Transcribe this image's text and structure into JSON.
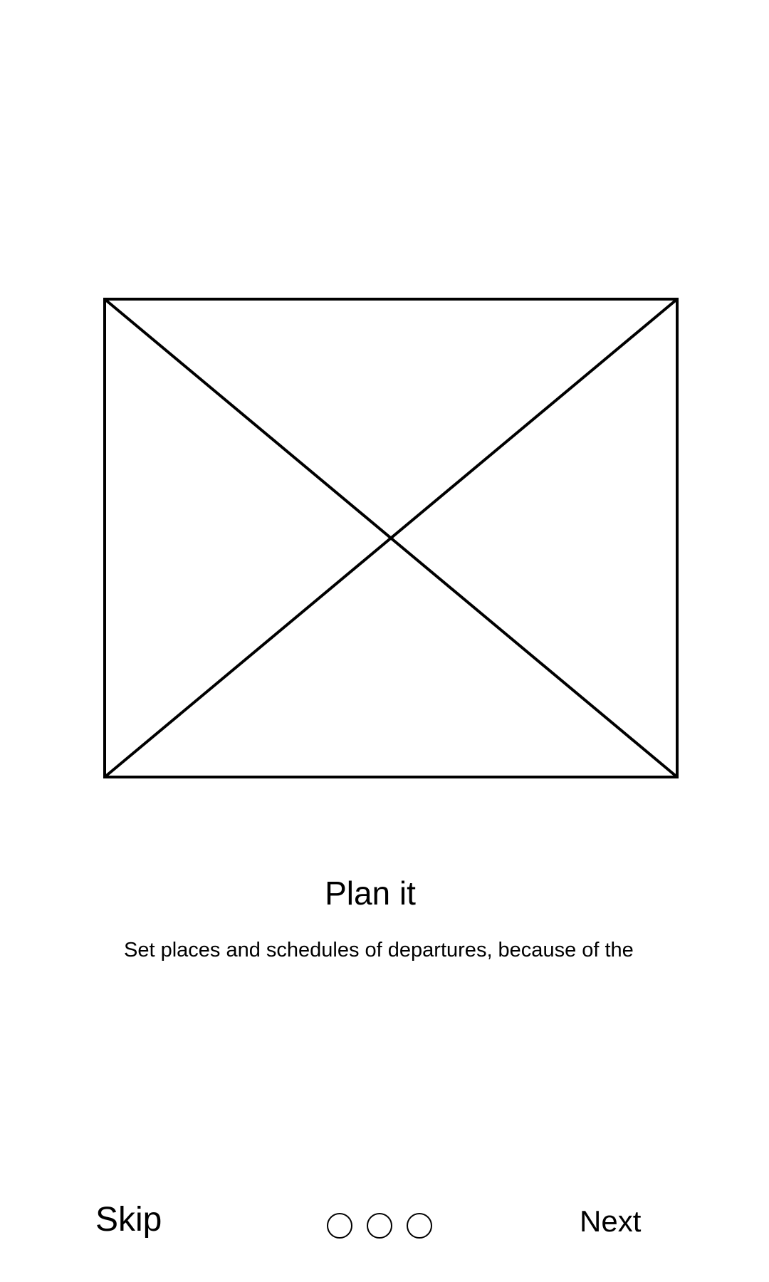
{
  "image_placeholder": {
    "icon": "image-placeholder-icon"
  },
  "onboarding": {
    "title": "Plan it",
    "description": "Set places and schedules of departures, because of the"
  },
  "footer": {
    "skip_label": "Skip",
    "next_label": "Next",
    "pager": {
      "page_count": 3,
      "dots": [
        "page-1",
        "page-2",
        "page-3"
      ]
    }
  },
  "colors": {
    "background": "#ffffff",
    "foreground": "#000000"
  }
}
